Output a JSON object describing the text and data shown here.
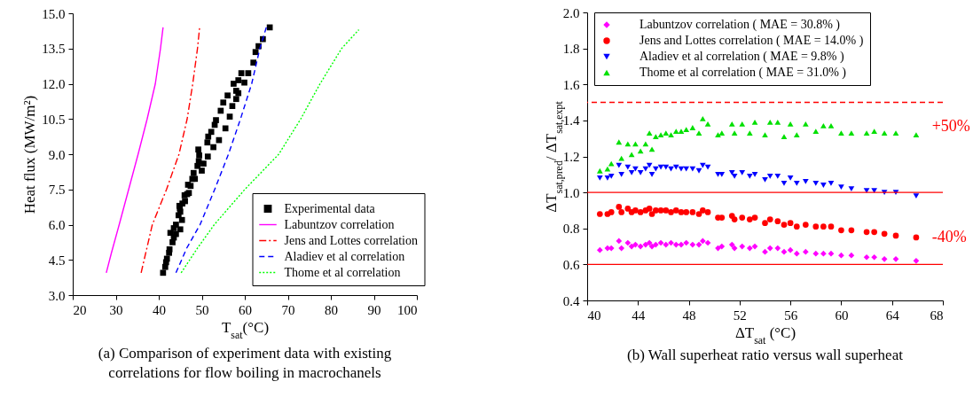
{
  "chart_data": [
    {
      "type": "line",
      "title": "(a) Comparison of experiment data with existing correlations for flow boiling in macrochanels",
      "xlabel": "T$_{sat}$(°C)",
      "ylabel": "Heat flux (MW/m²)",
      "xlim": [
        20,
        100
      ],
      "ylim": [
        3,
        15
      ],
      "xticks": [
        20,
        30,
        40,
        50,
        60,
        70,
        80,
        90,
        100
      ],
      "yticks": [
        {
          "value": 3,
          "label": "3.0"
        },
        {
          "value": 4.5,
          "label": "4.5"
        },
        {
          "value": 6,
          "label": "6.0"
        },
        {
          "value": 7.5,
          "label": "7.5"
        },
        {
          "value": 9,
          "label": "9.0"
        },
        {
          "value": 10.5,
          "label": "10.5"
        },
        {
          "value": 12,
          "label": "12.0"
        },
        {
          "value": 13.5,
          "label": "13.5"
        },
        {
          "value": 15,
          "label": "15.0"
        }
      ],
      "legend": "bottom right",
      "series": [
        {
          "name": "Experimental data",
          "type": "scatter",
          "marker": "square",
          "color": "#000000",
          "x": [
            41.0,
            41.5,
            41.7,
            41.9,
            42.4,
            42.5,
            43.2,
            43.5,
            44.0,
            42.7,
            43.5,
            44.0,
            45.0,
            45.4,
            44.6,
            44.9,
            45.0,
            44.8,
            45.5,
            46.1,
            46.0,
            46.6,
            47.0,
            46.8,
            47.4,
            47.8,
            48.4,
            48.1,
            49.0,
            49.3,
            49.4,
            49.2,
            50.0,
            50.4,
            51.4,
            51.3,
            51.5,
            52.2,
            52.7,
            53.0,
            53.3,
            54.0,
            54.4,
            55.0,
            55.5,
            56.0,
            56.5,
            57.1,
            57.4,
            58.0,
            58.0,
            58.5,
            58.5,
            59.2,
            59.9,
            60.8,
            62.0,
            62.5,
            63.2,
            64.2,
            65.8
          ],
          "values": [
            3.95,
            4.2,
            4.4,
            4.55,
            4.8,
            4.95,
            5.25,
            5.45,
            5.6,
            5.65,
            5.85,
            6.0,
            5.8,
            6.2,
            6.4,
            6.7,
            6.55,
            6.8,
            6.9,
            7.0,
            7.25,
            7.3,
            7.35,
            7.7,
            7.65,
            7.95,
            7.95,
            8.2,
            8.5,
            8.7,
            8.95,
            9.2,
            8.3,
            8.6,
            8.9,
            9.5,
            9.75,
            9.95,
            9.3,
            10.25,
            10.45,
            9.6,
            10.85,
            11.2,
            10.1,
            11.5,
            10.6,
            11.05,
            12.0,
            11.35,
            11.7,
            11.6,
            12.15,
            12.45,
            12.05,
            12.45,
            12.9,
            13.35,
            13.6,
            13.9,
            14.4
          ]
        },
        {
          "name": "Labuntzov correlation",
          "type": "line",
          "line_style": "solid",
          "color": "#ff00ff",
          "x": [
            27.8,
            29,
            30.8,
            33,
            35.2,
            37.3,
            39.2,
            40.4,
            41.0
          ],
          "values": [
            3.95,
            4.8,
            6.0,
            7.5,
            9.0,
            10.5,
            12.0,
            13.5,
            14.4
          ]
        },
        {
          "name": "Jens and Lottes correlation",
          "type": "line",
          "line_style": "dashdot",
          "color": "#ff0000",
          "x": [
            35.9,
            38.5,
            41.8,
            44.7,
            46.6,
            47.9,
            49.0,
            49.5
          ],
          "values": [
            3.95,
            6.0,
            7.5,
            9.0,
            10.5,
            12.0,
            13.5,
            14.4
          ]
        },
        {
          "name": "Aladiev et al correlation",
          "type": "line",
          "line_style": "dashed",
          "color": "#0000ff",
          "x": [
            44,
            46.5,
            49.6,
            53,
            56.2,
            59,
            61.6,
            63.5,
            65
          ],
          "values": [
            3.95,
            5.0,
            6.0,
            7.5,
            9.0,
            10.5,
            12.0,
            13.5,
            14.4
          ]
        },
        {
          "name": "Thome et al correlation",
          "type": "line",
          "line_style": "dotted",
          "color": "#00ff00",
          "x": [
            45.2,
            49,
            52.9,
            60,
            67.9,
            73,
            77.5,
            82.5,
            86.5
          ],
          "values": [
            3.95,
            5.0,
            6.0,
            7.5,
            9.0,
            10.5,
            12.0,
            13.5,
            14.3
          ]
        }
      ]
    },
    {
      "type": "scatter",
      "title": "(b) Wall superheat ratio versus wall superheat",
      "xlabel": "ΔT$_{sat}$ (°C)",
      "ylabel": "ΔT$_{sat,pred}$/ ΔT$_{sat,expt}$",
      "xlim": [
        40,
        68
      ],
      "ylim": [
        0.4,
        2.0
      ],
      "xticks": [
        40,
        44,
        48,
        52,
        56,
        60,
        64,
        68
      ],
      "yticks": [
        0.4,
        0.6,
        0.8,
        {
          "value": 1,
          "label": "1.0"
        },
        1.2,
        1.4,
        1.6,
        1.8,
        {
          "value": 2,
          "label": "2.0"
        }
      ],
      "legend": "top",
      "x": [
        41.0,
        41.6,
        41.9,
        42.5,
        42.7,
        43.2,
        43.5,
        43.8,
        44.2,
        44.6,
        44.9,
        45.1,
        45.4,
        45.8,
        46.2,
        46.6,
        47.0,
        47.4,
        47.8,
        48.3,
        48.8,
        49.1,
        49.5,
        50.3,
        50.6,
        51.4,
        51.6,
        52.2,
        52.8,
        53.2,
        54.0,
        54.4,
        55.0,
        55.5,
        56.0,
        56.5,
        57.2,
        58.0,
        58.6,
        59.2,
        60.0,
        60.8,
        62.0,
        62.6,
        63.4,
        64.3,
        65.9
      ],
      "series": [
        {
          "name": "Labuntzov correlation ( MAE = 30.8% )",
          "marker": "diamond",
          "color": "#ff00ff",
          "values": [
            0.68,
            0.69,
            0.69,
            0.73,
            0.69,
            0.72,
            0.7,
            0.71,
            0.7,
            0.71,
            0.72,
            0.7,
            0.71,
            0.72,
            0.71,
            0.72,
            0.71,
            0.71,
            0.72,
            0.71,
            0.71,
            0.73,
            0.72,
            0.69,
            0.7,
            0.71,
            0.69,
            0.7,
            0.69,
            0.7,
            0.67,
            0.69,
            0.69,
            0.67,
            0.68,
            0.66,
            0.67,
            0.66,
            0.66,
            0.66,
            0.65,
            0.65,
            0.64,
            0.64,
            0.63,
            0.63,
            0.62
          ]
        },
        {
          "name": "Jens and Lottes correlation ( MAE = 14.0% )",
          "marker": "circle",
          "color": "#ff0000",
          "values": [
            0.88,
            0.88,
            0.89,
            0.92,
            0.89,
            0.91,
            0.89,
            0.9,
            0.89,
            0.9,
            0.91,
            0.88,
            0.9,
            0.9,
            0.9,
            0.89,
            0.9,
            0.89,
            0.89,
            0.89,
            0.88,
            0.9,
            0.89,
            0.86,
            0.86,
            0.87,
            0.85,
            0.86,
            0.85,
            0.86,
            0.83,
            0.85,
            0.84,
            0.82,
            0.83,
            0.81,
            0.82,
            0.81,
            0.81,
            0.81,
            0.79,
            0.79,
            0.78,
            0.78,
            0.77,
            0.76,
            0.75
          ]
        },
        {
          "name": "Aladiev et al correlation ( MAE = 9.8% )",
          "marker": "triangle-down",
          "color": "#0000ff",
          "values": [
            1.08,
            1.08,
            1.09,
            1.15,
            1.1,
            1.14,
            1.11,
            1.13,
            1.11,
            1.13,
            1.15,
            1.1,
            1.13,
            1.14,
            1.14,
            1.13,
            1.14,
            1.13,
            1.13,
            1.13,
            1.12,
            1.15,
            1.14,
            1.1,
            1.1,
            1.11,
            1.09,
            1.11,
            1.09,
            1.1,
            1.07,
            1.09,
            1.09,
            1.05,
            1.08,
            1.05,
            1.06,
            1.05,
            1.04,
            1.05,
            1.03,
            1.02,
            1.01,
            1.01,
            1.0,
            1.0,
            0.98
          ]
        },
        {
          "name": "Thome et al correlation ( MAE = 31.0% )",
          "marker": "triangle",
          "color": "#00e000",
          "values": [
            1.12,
            1.13,
            1.16,
            1.28,
            1.19,
            1.27,
            1.21,
            1.27,
            1.23,
            1.27,
            1.33,
            1.24,
            1.31,
            1.32,
            1.33,
            1.32,
            1.34,
            1.34,
            1.35,
            1.36,
            1.33,
            1.41,
            1.38,
            1.32,
            1.33,
            1.38,
            1.33,
            1.38,
            1.33,
            1.39,
            1.32,
            1.39,
            1.39,
            1.31,
            1.38,
            1.32,
            1.38,
            1.34,
            1.37,
            1.37,
            1.33,
            1.33,
            1.33,
            1.34,
            1.33,
            1.33,
            1.32
          ]
        }
      ],
      "ref_lines": [
        {
          "axis": "y",
          "value": 1.5,
          "color": "#ff0000",
          "line_style": "dashed"
        },
        {
          "axis": "y",
          "value": 1.0,
          "color": "#ff0000"
        },
        {
          "axis": "y",
          "value": 0.6,
          "color": "#ff0000"
        }
      ],
      "annotations": [
        {
          "text": "+50%",
          "x": 67,
          "y": 1.5
        },
        {
          "text": "-40%",
          "x": 67,
          "y": 0.6
        }
      ]
    }
  ]
}
